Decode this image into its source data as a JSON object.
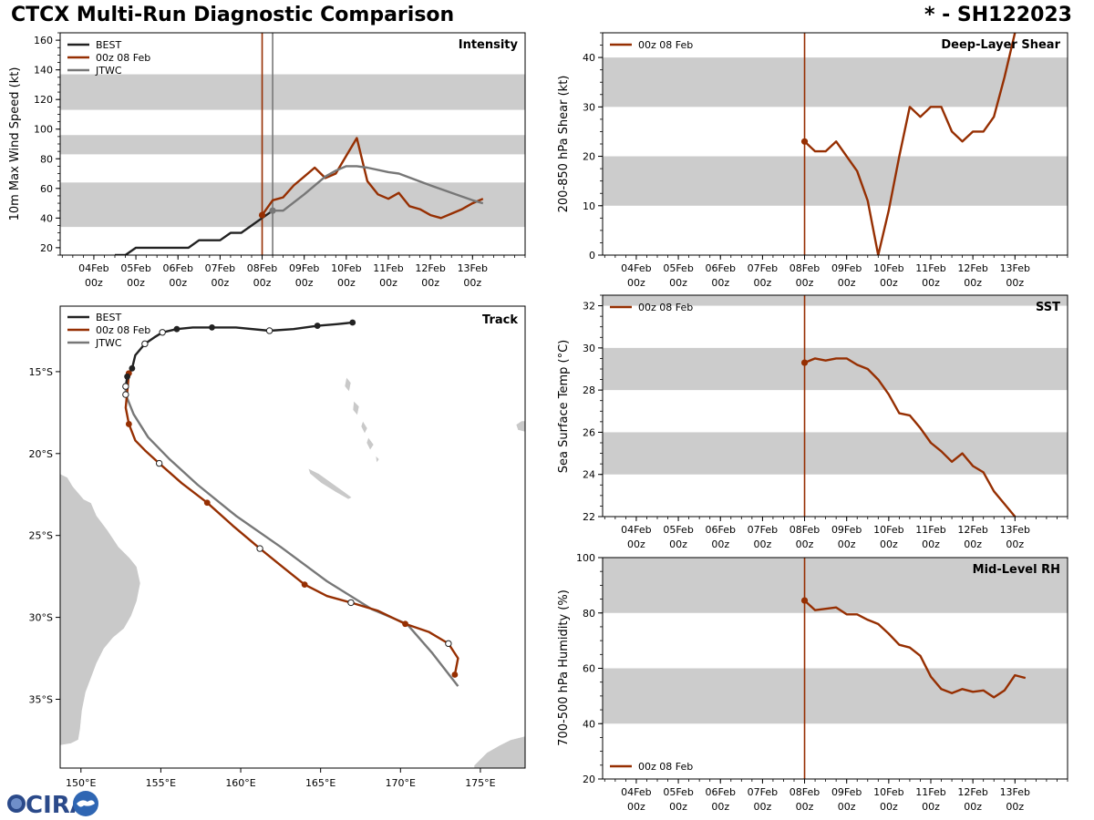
{
  "header": {
    "title": "CTCX Multi-Run Diagnostic Comparison",
    "storm_id": "* - SH122023"
  },
  "logo": {
    "text": "CIRA"
  },
  "colors": {
    "best": "#222222",
    "run": "#962f02",
    "jtwc": "#777777",
    "band": "#cccccc",
    "land": "#c9c9c9"
  },
  "chart_data": [
    {
      "id": "intensity",
      "type": "line",
      "panel_title": "Intensity",
      "ylabel": "10m Max Wind Speed (kt)",
      "ylim": [
        15,
        165
      ],
      "yticks": [
        20,
        40,
        60,
        80,
        100,
        120,
        140,
        160
      ],
      "xlim": [
        -0.8,
        10.25
      ],
      "x_ticks": [
        {
          "x": 0,
          "l1": "04Feb",
          "l2": "00z"
        },
        {
          "x": 1,
          "l1": "05Feb",
          "l2": "00z"
        },
        {
          "x": 2,
          "l1": "06Feb",
          "l2": "00z"
        },
        {
          "x": 3,
          "l1": "07Feb",
          "l2": "00z"
        },
        {
          "x": 4,
          "l1": "08Feb",
          "l2": "00z"
        },
        {
          "x": 5,
          "l1": "09Feb",
          "l2": "00z"
        },
        {
          "x": 6,
          "l1": "10Feb",
          "l2": "00z"
        },
        {
          "x": 7,
          "l1": "11Feb",
          "l2": "00z"
        },
        {
          "x": 8,
          "l1": "12Feb",
          "l2": "00z"
        },
        {
          "x": 9,
          "l1": "13Feb",
          "l2": "00z"
        }
      ],
      "bands": [
        [
          34,
          64
        ],
        [
          83,
          96
        ],
        [
          113,
          137
        ]
      ],
      "vlines": [
        {
          "x": 4.0,
          "series": "run"
        },
        {
          "x": 4.25,
          "series": "jtwc"
        }
      ],
      "legend": [
        "BEST",
        "00z 08 Feb",
        "JTWC"
      ],
      "series": [
        {
          "name": "BEST",
          "key": "best",
          "x": [
            0.5,
            0.75,
            1.0,
            1.25,
            1.5,
            1.75,
            2.0,
            2.25,
            2.5,
            2.75,
            3.0,
            3.25,
            3.5,
            3.75,
            4.0,
            4.25
          ],
          "y": [
            15,
            15,
            20,
            20,
            20,
            20,
            20,
            20,
            25,
            25,
            25,
            30,
            30,
            35,
            40,
            45
          ]
        },
        {
          "name": "00z 08 Feb",
          "key": "run",
          "marker_at_start": true,
          "x": [
            4.0,
            4.25,
            4.5,
            4.75,
            5.0,
            5.25,
            5.5,
            5.75,
            6.0,
            6.25,
            6.5,
            6.75,
            7.0,
            7.25,
            7.5,
            7.75,
            8.0,
            8.25,
            8.5,
            8.75,
            9.0,
            9.25
          ],
          "y": [
            42,
            52,
            54,
            62,
            68,
            74,
            67,
            70,
            82,
            94,
            65,
            56,
            53,
            57,
            48,
            46,
            42,
            40,
            43,
            46,
            50,
            53
          ]
        },
        {
          "name": "JTWC",
          "key": "jtwc",
          "marker_at_start": true,
          "x": [
            4.25,
            4.5,
            5.0,
            5.5,
            5.75,
            6.0,
            6.25,
            6.5,
            7.0,
            7.25,
            8.0,
            9.0,
            9.25
          ],
          "y": [
            45,
            45,
            56,
            68,
            72,
            75,
            75,
            74,
            71,
            70,
            62,
            52,
            50
          ]
        }
      ]
    },
    {
      "id": "shear",
      "type": "line",
      "panel_title": "Deep-Layer Shear",
      "ylabel": "200-850 hPa Shear (kt)",
      "ylim": [
        0,
        45
      ],
      "yticks": [
        0,
        10,
        20,
        30,
        40
      ],
      "xlim": [
        -0.8,
        10.25
      ],
      "x_ticks": [
        {
          "x": 0,
          "l1": "04Feb",
          "l2": "00z"
        },
        {
          "x": 1,
          "l1": "05Feb",
          "l2": "00z"
        },
        {
          "x": 2,
          "l1": "06Feb",
          "l2": "00z"
        },
        {
          "x": 3,
          "l1": "07Feb",
          "l2": "00z"
        },
        {
          "x": 4,
          "l1": "08Feb",
          "l2": "00z"
        },
        {
          "x": 5,
          "l1": "09Feb",
          "l2": "00z"
        },
        {
          "x": 6,
          "l1": "10Feb",
          "l2": "00z"
        },
        {
          "x": 7,
          "l1": "11Feb",
          "l2": "00z"
        },
        {
          "x": 8,
          "l1": "12Feb",
          "l2": "00z"
        },
        {
          "x": 9,
          "l1": "13Feb",
          "l2": "00z"
        }
      ],
      "bands": [
        [
          10,
          20
        ],
        [
          30,
          40
        ]
      ],
      "vlines": [
        {
          "x": 4.0,
          "series": "run"
        }
      ],
      "legend": [
        "00z 08 Feb"
      ],
      "series": [
        {
          "name": "00z 08 Feb",
          "key": "run",
          "marker_at_start": true,
          "x": [
            4.0,
            4.25,
            4.5,
            4.75,
            5.0,
            5.25,
            5.5,
            5.75,
            6.0,
            6.25,
            6.5,
            6.75,
            7.0,
            7.25,
            7.5,
            7.75,
            8.0,
            8.25,
            8.5,
            8.75,
            9.0
          ],
          "y": [
            23,
            21,
            21,
            23,
            20,
            17,
            11,
            0,
            9,
            20,
            30,
            28,
            30,
            30,
            25,
            23,
            25,
            25,
            28,
            36,
            45
          ]
        }
      ]
    },
    {
      "id": "sst",
      "type": "line",
      "panel_title": "SST",
      "ylabel": "Sea Surface Temp (°C)",
      "ylim": [
        22,
        32.5
      ],
      "yticks": [
        22,
        24,
        26,
        28,
        30,
        32
      ],
      "xlim": [
        -0.8,
        10.25
      ],
      "x_ticks": [
        {
          "x": 0,
          "l1": "04Feb",
          "l2": "00z"
        },
        {
          "x": 1,
          "l1": "05Feb",
          "l2": "00z"
        },
        {
          "x": 2,
          "l1": "06Feb",
          "l2": "00z"
        },
        {
          "x": 3,
          "l1": "07Feb",
          "l2": "00z"
        },
        {
          "x": 4,
          "l1": "08Feb",
          "l2": "00z"
        },
        {
          "x": 5,
          "l1": "09Feb",
          "l2": "00z"
        },
        {
          "x": 6,
          "l1": "10Feb",
          "l2": "00z"
        },
        {
          "x": 7,
          "l1": "11Feb",
          "l2": "00z"
        },
        {
          "x": 8,
          "l1": "12Feb",
          "l2": "00z"
        },
        {
          "x": 9,
          "l1": "13Feb",
          "l2": "00z"
        }
      ],
      "bands": [
        [
          24,
          26
        ],
        [
          28,
          30
        ],
        [
          32,
          34
        ]
      ],
      "vlines": [
        {
          "x": 4.0,
          "series": "run"
        }
      ],
      "legend": [
        "00z 08 Feb"
      ],
      "series": [
        {
          "name": "00z 08 Feb",
          "key": "run",
          "marker_at_start": true,
          "x": [
            4.0,
            4.25,
            4.5,
            4.75,
            5.0,
            5.25,
            5.5,
            5.75,
            6.0,
            6.25,
            6.5,
            6.75,
            7.0,
            7.25,
            7.5,
            7.75,
            8.0,
            8.25,
            8.5,
            8.75,
            9.0
          ],
          "y": [
            29.3,
            29.5,
            29.4,
            29.5,
            29.5,
            29.2,
            29.0,
            28.5,
            27.8,
            26.9,
            26.8,
            26.2,
            25.5,
            25.1,
            24.6,
            25.0,
            24.4,
            24.1,
            23.2,
            22.6,
            22.0
          ]
        }
      ]
    },
    {
      "id": "rh",
      "type": "line",
      "panel_title": "Mid-Level RH",
      "ylabel": "700-500 hPa Humidity (%)",
      "ylim": [
        20,
        100
      ],
      "yticks": [
        20,
        40,
        60,
        80,
        100
      ],
      "xlim": [
        -0.8,
        10.25
      ],
      "x_ticks": [
        {
          "x": 0,
          "l1": "04Feb",
          "l2": "00z"
        },
        {
          "x": 1,
          "l1": "05Feb",
          "l2": "00z"
        },
        {
          "x": 2,
          "l1": "06Feb",
          "l2": "00z"
        },
        {
          "x": 3,
          "l1": "07Feb",
          "l2": "00z"
        },
        {
          "x": 4,
          "l1": "08Feb",
          "l2": "00z"
        },
        {
          "x": 5,
          "l1": "09Feb",
          "l2": "00z"
        },
        {
          "x": 6,
          "l1": "10Feb",
          "l2": "00z"
        },
        {
          "x": 7,
          "l1": "11Feb",
          "l2": "00z"
        },
        {
          "x": 8,
          "l1": "12Feb",
          "l2": "00z"
        },
        {
          "x": 9,
          "l1": "13Feb",
          "l2": "00z"
        }
      ],
      "bands": [
        [
          40,
          60
        ],
        [
          80,
          100
        ]
      ],
      "vlines": [
        {
          "x": 4.0,
          "series": "run"
        }
      ],
      "legend": [
        "00z 08 Feb"
      ],
      "legend_position": "bottom-left",
      "series": [
        {
          "name": "00z 08 Feb",
          "key": "run",
          "marker_at_start": true,
          "x": [
            4.0,
            4.25,
            4.5,
            4.75,
            5.0,
            5.25,
            5.5,
            5.75,
            6.0,
            6.25,
            6.5,
            6.75,
            7.0,
            7.25,
            7.5,
            7.75,
            8.0,
            8.25,
            8.5,
            8.75,
            9.0,
            9.25
          ],
          "y": [
            84.5,
            81,
            81.5,
            82,
            79.5,
            79.5,
            77.5,
            76,
            72.5,
            68.5,
            67.5,
            64.5,
            57,
            52.5,
            51,
            52.5,
            51.5,
            52,
            49.5,
            52,
            57.5,
            56.5
          ]
        }
      ]
    },
    {
      "id": "track",
      "type": "scatter",
      "panel_title": "Track",
      "xlabel": "",
      "ylabel": "",
      "xlim": [
        148.7,
        177.8
      ],
      "ylim": [
        -39.2,
        -11.0
      ],
      "x_ticks": [
        {
          "v": 150,
          "l": "150°E"
        },
        {
          "v": 155,
          "l": "155°E"
        },
        {
          "v": 160,
          "l": "160°E"
        },
        {
          "v": 165,
          "l": "165°E"
        },
        {
          "v": 170,
          "l": "170°E"
        },
        {
          "v": 175,
          "l": "175°E"
        }
      ],
      "y_ticks": [
        {
          "v": -15,
          "l": "15°S"
        },
        {
          "v": -20,
          "l": "20°S"
        },
        {
          "v": -25,
          "l": "25°S"
        },
        {
          "v": -30,
          "l": "30°S"
        },
        {
          "v": -35,
          "l": "35°S"
        }
      ],
      "legend": [
        "BEST",
        "00z 08 Feb",
        "JTWC"
      ],
      "series": [
        {
          "name": "BEST",
          "key": "best",
          "lon": [
            167.0,
            166.0,
            164.8,
            163.3,
            161.8,
            159.7,
            158.2,
            157.0,
            156.0,
            155.1,
            154.6,
            154.0,
            153.4,
            153.2,
            152.9,
            152.8
          ],
          "lat": [
            -12.0,
            -12.1,
            -12.2,
            -12.4,
            -12.5,
            -12.3,
            -12.3,
            -12.3,
            -12.4,
            -12.6,
            -12.9,
            -13.3,
            -14.0,
            -14.8,
            -15.3,
            -15.9
          ],
          "filled_idx": [
            0,
            2,
            6,
            8,
            13,
            14
          ],
          "open_idx": [
            4,
            9,
            11,
            15
          ]
        },
        {
          "name": "00z 08 Feb",
          "key": "run",
          "lon": [
            153.0,
            152.9,
            152.8,
            153.0,
            153.4,
            154.0,
            154.9,
            156.3,
            157.9,
            159.5,
            161.2,
            162.6,
            164.0,
            165.4,
            166.9,
            168.6,
            170.3,
            171.8,
            173.0,
            173.6,
            173.4
          ],
          "lat": [
            -15.1,
            -16.2,
            -17.2,
            -18.2,
            -19.2,
            -19.8,
            -20.6,
            -21.8,
            -23.0,
            -24.4,
            -25.8,
            -26.9,
            -28.0,
            -28.7,
            -29.1,
            -29.6,
            -30.4,
            -30.9,
            -31.6,
            -32.5,
            -33.5
          ],
          "filled_idx": [
            0,
            3,
            8,
            12,
            16,
            20
          ],
          "open_idx": [
            6,
            10,
            14,
            18
          ]
        },
        {
          "name": "JTWC",
          "key": "jtwc",
          "lon": [
            152.8,
            152.8,
            153.3,
            154.2,
            155.5,
            157.3,
            159.7,
            162.5,
            165.4,
            168.2,
            170.4,
            172.0,
            173.6
          ],
          "lat": [
            -15.9,
            -16.4,
            -17.6,
            -19.0,
            -20.3,
            -21.9,
            -23.8,
            -25.7,
            -27.8,
            -29.5,
            -30.4,
            -32.2,
            -34.2
          ],
          "filled_idx": [
            0
          ],
          "open_idx": [
            1
          ]
        }
      ]
    }
  ]
}
